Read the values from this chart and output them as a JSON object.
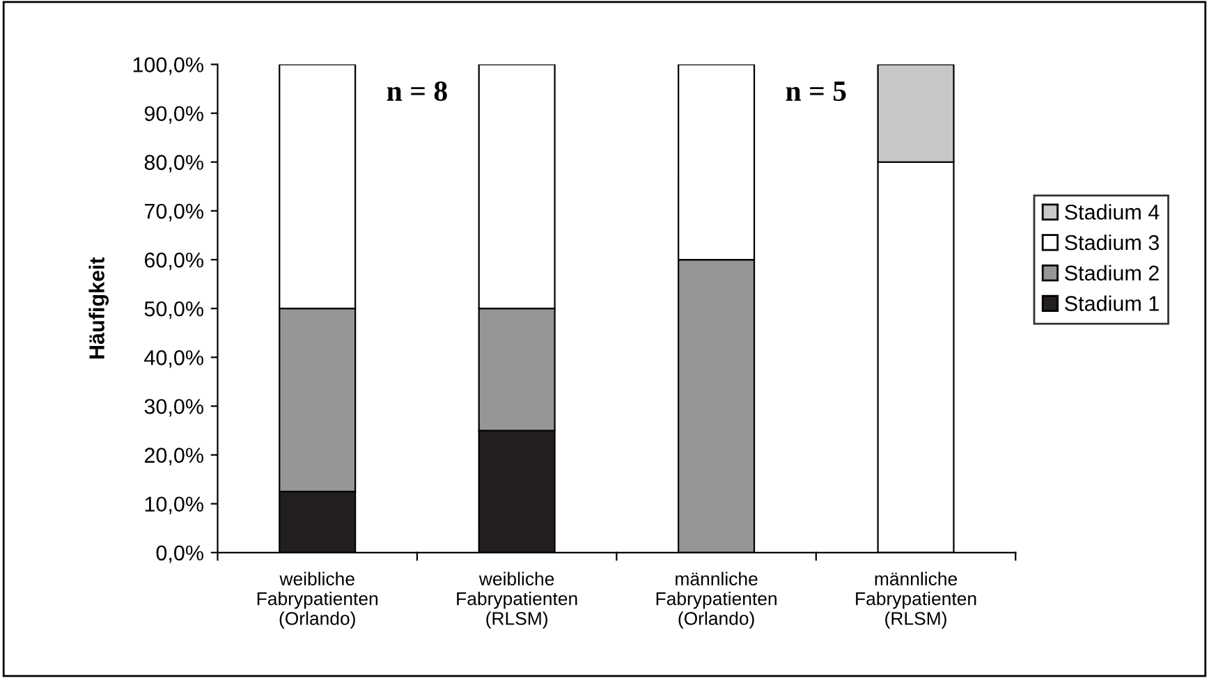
{
  "chart_data": {
    "type": "bar",
    "stacked": true,
    "ylabel": "Häufigkeit",
    "categories": [
      "weibliche\nFabrypatienten\n(Orlando)",
      "weibliche\nFabrypatienten\n(RLSM)",
      "männliche\nFabrypatienten\n(Orlando)",
      "männliche\nFabrypatienten\n(RLSM)"
    ],
    "series": [
      {
        "name": "Stadium 1",
        "color": "#231f20",
        "values": [
          12.5,
          25,
          0,
          0
        ]
      },
      {
        "name": "Stadium 2",
        "color": "#969696",
        "values": [
          37.5,
          25,
          60,
          0
        ]
      },
      {
        "name": "Stadium 3",
        "color": "#ffffff",
        "values": [
          50,
          50,
          40,
          80
        ]
      },
      {
        "name": "Stadium 4",
        "color": "#c8c8c8",
        "values": [
          0,
          0,
          0,
          20
        ]
      }
    ],
    "ylim": [
      0,
      100
    ],
    "yticks": [
      {
        "value": 0,
        "label": "0,0%"
      },
      {
        "value": 10,
        "label": "10,0%"
      },
      {
        "value": 20,
        "label": "20,0%"
      },
      {
        "value": 30,
        "label": "30,0%"
      },
      {
        "value": 40,
        "label": "40,0%"
      },
      {
        "value": 50,
        "label": "50,0%"
      },
      {
        "value": 60,
        "label": "60,0%"
      },
      {
        "value": 70,
        "label": "70,0%"
      },
      {
        "value": 80,
        "label": "80,0%"
      },
      {
        "value": 90,
        "label": "90,0%"
      },
      {
        "value": 100,
        "label": "100,0%"
      }
    ],
    "annotations": [
      "n = 8",
      "n = 5"
    ],
    "legend": "right",
    "grid": false
  }
}
